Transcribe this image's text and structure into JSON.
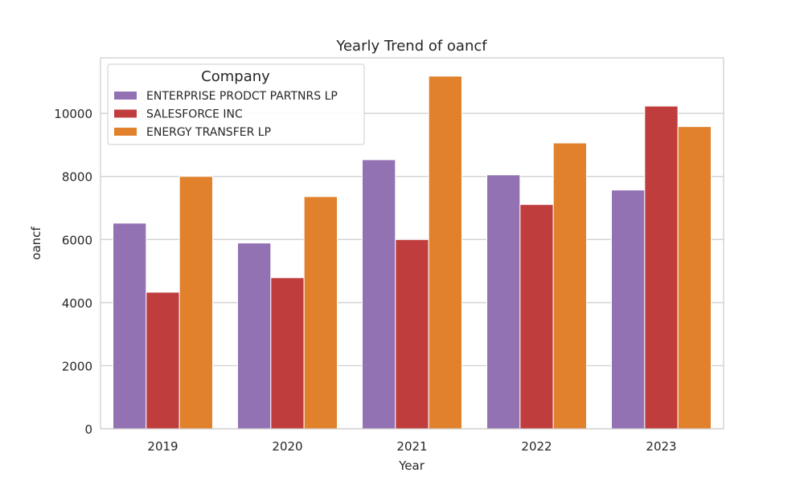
{
  "chart_data": {
    "type": "bar",
    "title": "Yearly Trend of oancf",
    "xlabel": "Year",
    "ylabel": "oancf",
    "categories": [
      "2019",
      "2020",
      "2021",
      "2022",
      "2023"
    ],
    "series": [
      {
        "name": "ENTERPRISE PRODCT PARTNRS LP",
        "color": "#9372b4",
        "values": [
          6520,
          5890,
          8530,
          8050,
          7570
        ]
      },
      {
        "name": "SALESFORCE INC",
        "color": "#c03d3e",
        "values": [
          4330,
          4790,
          6000,
          7110,
          10230
        ]
      },
      {
        "name": "ENERGY TRANSFER LP",
        "color": "#e1812c",
        "values": [
          8000,
          7360,
          11180,
          9060,
          9580
        ]
      }
    ],
    "ylim": [
      0,
      11760
    ],
    "yticks": [
      0,
      2000,
      4000,
      6000,
      8000,
      10000
    ],
    "ytick_labels": [
      "0",
      "2000",
      "4000",
      "6000",
      "8000",
      "10000"
    ],
    "grid": true,
    "legend": {
      "title": "Company",
      "placement": "top-left"
    }
  }
}
